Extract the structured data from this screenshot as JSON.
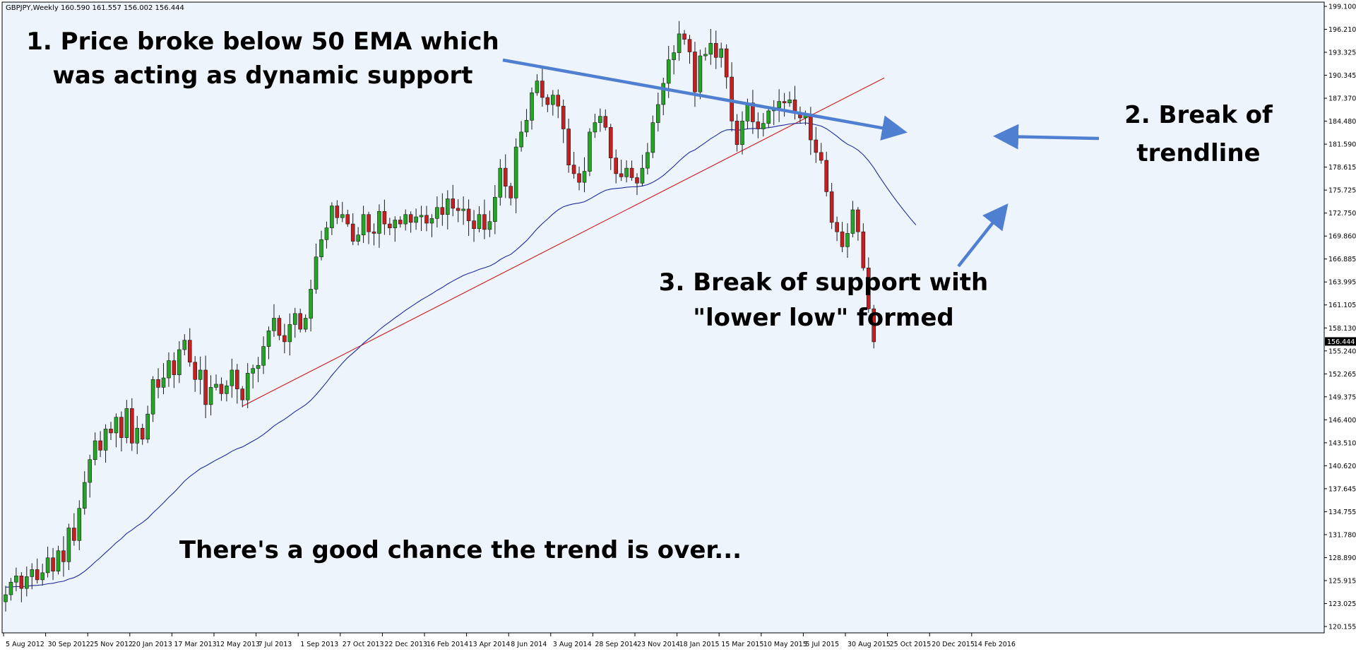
{
  "chart_data": {
    "type": "candlestick",
    "header": "GBPJPY,Weekly  160.590 161.557 156.002 156.444",
    "symbol": "GBPJPY",
    "timeframe": "Weekly",
    "ylim": [
      120.155,
      199.1
    ],
    "y_ticks": [
      "199.100",
      "196.210",
      "193.325",
      "190.345",
      "187.370",
      "184.480",
      "181.590",
      "178.615",
      "175.725",
      "172.750",
      "169.860",
      "166.885",
      "163.995",
      "161.105",
      "158.130",
      "155.240",
      "152.265",
      "149.375",
      "146.400",
      "143.510",
      "140.620",
      "137.645",
      "134.755",
      "131.780",
      "128.890",
      "125.915",
      "123.025",
      "120.155"
    ],
    "x_ticks": [
      "5 Aug 2012",
      "30 Sep 2012",
      "25 Nov 2012",
      "20 Jan 2013",
      "17 Mar 2013",
      "12 May 2013",
      "7 Jul 2013",
      "1 Sep 2013",
      "27 Oct 2013",
      "22 Dec 2013",
      "16 Feb 2014",
      "13 Apr 2014",
      "8 Jun 2014",
      "3 Aug 2014",
      "28 Sep 2014",
      "23 Nov 2014",
      "18 Jan 2015",
      "15 Mar 2015",
      "10 May 2015",
      "5 Jul 2015",
      "30 Aug 2015",
      "25 Oct 2015",
      "20 Dec 2015",
      "14 Feb 2016"
    ],
    "current_price": "156.444",
    "closes": [
      124.2,
      125.8,
      126.6,
      125.0,
      126.5,
      127.4,
      126.1,
      127.0,
      128.9,
      127.2,
      129.8,
      128.4,
      132.7,
      131.1,
      135.2,
      138.5,
      141.4,
      143.8,
      142.6,
      145.3,
      144.8,
      146.8,
      144.2,
      147.9,
      143.5,
      145.4,
      144.0,
      147.2,
      151.6,
      150.6,
      151.8,
      154.0,
      152.2,
      155.4,
      156.6,
      153.8,
      151.6,
      152.8,
      148.4,
      150.6,
      151.0,
      149.8,
      150.8,
      152.8,
      150.4,
      149.0,
      152.4,
      153.0,
      153.4,
      155.8,
      157.8,
      159.4,
      157.2,
      156.4,
      158.6,
      160.0,
      158.0,
      159.4,
      163.1,
      167.2,
      169.4,
      170.9,
      173.7,
      172.2,
      172.6,
      171.4,
      169.2,
      170.0,
      172.6,
      170.4,
      170.2,
      173.0,
      171.4,
      170.9,
      171.9,
      171.4,
      172.6,
      171.6,
      172.3,
      172.5,
      171.5,
      172.1,
      173.5,
      172.6,
      174.6,
      173.4,
      173.1,
      173.3,
      171.8,
      170.8,
      172.6,
      170.7,
      171.7,
      174.8,
      178.5,
      176.2,
      174.7,
      181.2,
      183.1,
      184.6,
      188.1,
      189.6,
      187.5,
      186.6,
      187.8,
      186.4,
      183.5,
      178.9,
      177.8,
      176.7,
      178.1,
      183.1,
      184.3,
      185.1,
      183.7,
      179.8,
      177.8,
      177.4,
      178.5,
      177.3,
      176.6,
      178.5,
      180.5,
      184.3,
      186.6,
      189.3,
      192.3,
      193.2,
      195.6,
      194.9,
      193.3,
      188.2,
      192.8,
      193.0,
      194.4,
      192.6,
      193.7,
      190.1,
      184.5,
      181.5,
      184.5,
      186.8,
      184.4,
      183.5,
      184.2,
      185.8,
      186.2,
      187.0,
      186.8,
      187.2,
      185.6,
      184.9,
      185.4,
      182.1,
      180.5,
      179.5,
      175.5,
      171.6,
      170.4,
      168.5,
      170.2,
      173.2,
      170.4,
      165.8,
      160.6,
      156.4
    ],
    "annotations": [
      {
        "id": "ema-note",
        "text": "1. Price broke below 50 EMA which\nwas acting as dynamic support"
      },
      {
        "id": "trendline-note",
        "text": "2. Break of\ntrendline"
      },
      {
        "id": "support-note",
        "text": "3. Break of support with\n\"lower low\" formed"
      },
      {
        "id": "conclusion",
        "text": "There's a good chance the trend is over..."
      }
    ],
    "colors": {
      "background": "#eef4fc",
      "bull": "#24a624",
      "bear": "#c61f1f",
      "wick": "#1a1a1a",
      "ema": "#1e2a9c",
      "trendline": "#d01818",
      "arrow": "#4f7fd0",
      "axis": "#000000"
    }
  }
}
